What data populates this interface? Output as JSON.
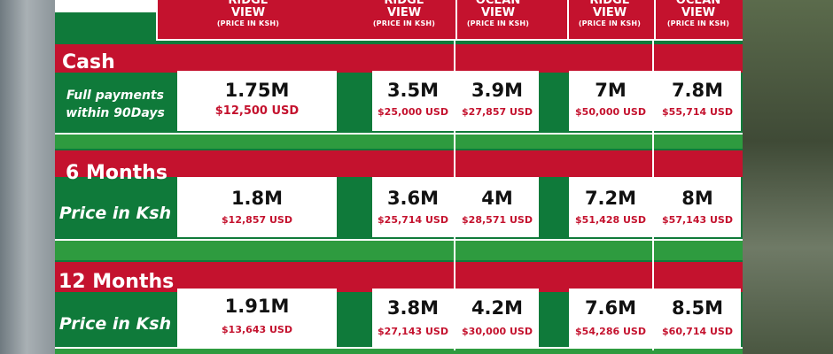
{
  "headers": [
    {
      "title_line": "RIDGE",
      "title_line2": "VIEW",
      "sub": "(PRICE IN KSH)"
    },
    {
      "title_line": "RIDGE",
      "title_line2": "VIEW",
      "sub": "(PRICE IN KSH)"
    },
    {
      "title_line": "OCEAN",
      "title_line2": "VIEW",
      "sub": "(PRICE IN KSH)"
    },
    {
      "title_line": "RIDGE",
      "title_line2": "VIEW",
      "sub": "(PRICE IN KSH)"
    },
    {
      "title_line": "OCEAN",
      "title_line2": "VIEW",
      "sub": "(PRICE IN KSH)"
    }
  ],
  "rows": [
    {
      "title": "Cash",
      "sub_line1": "Full payments",
      "sub_line2": "within 90Days",
      "cells": [
        {
          "ksh": "1.75M",
          "usd": "$12,500 USD"
        },
        {
          "ksh": "3.5M",
          "usd": "$25,000 USD"
        },
        {
          "ksh": "3.9M",
          "usd": "$27,857 USD"
        },
        {
          "ksh": "7M",
          "usd": "$50,000 USD"
        },
        {
          "ksh": "7.8M",
          "usd": "$55,714 USD"
        }
      ]
    },
    {
      "title": "6 Months",
      "sub_line1": "Price in Ksh",
      "cells": [
        {
          "ksh": "1.8M",
          "usd": "$12,857 USD"
        },
        {
          "ksh": "3.6M",
          "usd": "$25,714 USD"
        },
        {
          "ksh": "4M",
          "usd": "$28,571 USD"
        },
        {
          "ksh": "7.2M",
          "usd": "$51,428 USD"
        },
        {
          "ksh": "8M",
          "usd": "$57,143 USD"
        }
      ]
    },
    {
      "title": "12 Months",
      "sub_line1": "Price in Ksh",
      "cells": [
        {
          "ksh": "1.91M",
          "usd": "$13,643 USD"
        },
        {
          "ksh": "3.8M",
          "usd": "$27,143 USD"
        },
        {
          "ksh": "4.2M",
          "usd": "$30,000 USD"
        },
        {
          "ksh": "7.6M",
          "usd": "$54,286 USD"
        },
        {
          "ksh": "8.5M",
          "usd": "$60,714 USD"
        }
      ]
    }
  ],
  "colors": {
    "red": "#c4122e",
    "green": "#0f7a3a",
    "lime": "#2e9b3f",
    "white": "#ffffff"
  }
}
